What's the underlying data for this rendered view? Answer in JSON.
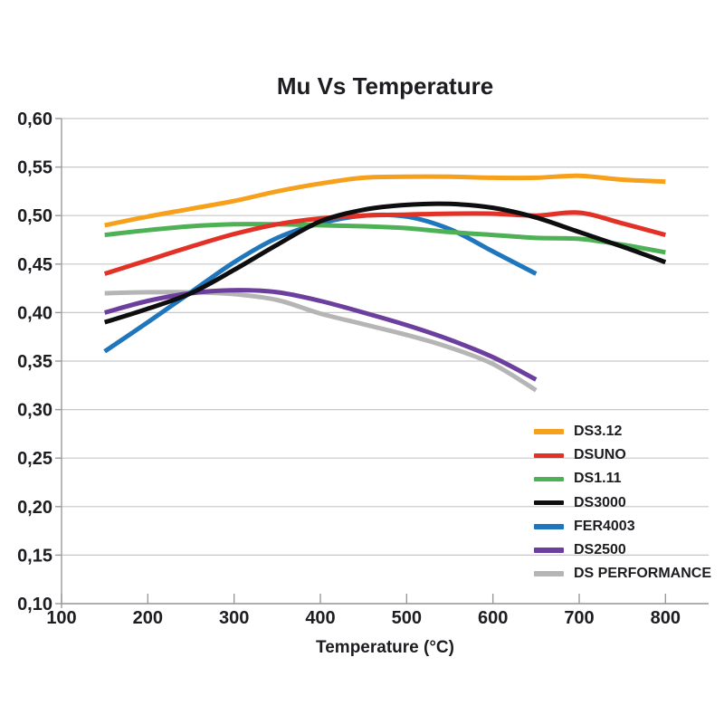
{
  "title": "Mu Vs Temperature",
  "colors": {
    "background": "#ffffff",
    "text": "#1d1d21",
    "grid": "#c7c7c7",
    "axis": "#999999"
  },
  "chart_data": {
    "type": "line",
    "title": "Mu Vs Temperature",
    "xlabel": "Temperature (°C)",
    "ylabel": "",
    "xlim": [
      100,
      850
    ],
    "ylim": [
      0.1,
      0.6
    ],
    "grid": "horizontal",
    "legend_position": "inside-right-bottom",
    "x_ticks": [
      100,
      200,
      300,
      400,
      500,
      600,
      700,
      800
    ],
    "y_ticks": [
      0.1,
      0.15,
      0.2,
      0.25,
      0.3,
      0.35,
      0.4,
      0.45,
      0.5,
      0.55,
      0.6
    ],
    "y_tick_labels": [
      "0,10",
      "0,15",
      "0,20",
      "0,25",
      "0,30",
      "0,35",
      "0,40",
      "0,45",
      "0,50",
      "0,55",
      "0,60"
    ],
    "series": [
      {
        "name": "DS3.12",
        "color": "#f6a01b",
        "x": [
          150,
          200,
          250,
          300,
          350,
          400,
          450,
          500,
          550,
          600,
          650,
          700,
          750,
          800
        ],
        "y": [
          0.49,
          0.499,
          0.507,
          0.515,
          0.525,
          0.533,
          0.539,
          0.54,
          0.54,
          0.539,
          0.539,
          0.541,
          0.537,
          0.535
        ]
      },
      {
        "name": "DSUNO",
        "color": "#e23227",
        "x": [
          150,
          200,
          250,
          300,
          350,
          400,
          450,
          500,
          550,
          600,
          650,
          700,
          750,
          800
        ],
        "y": [
          0.44,
          0.454,
          0.468,
          0.481,
          0.491,
          0.497,
          0.5,
          0.501,
          0.502,
          0.502,
          0.5,
          0.503,
          0.492,
          0.48
        ]
      },
      {
        "name": "DS1.11",
        "color": "#4eb156",
        "x": [
          150,
          200,
          250,
          300,
          350,
          400,
          450,
          500,
          550,
          600,
          650,
          700,
          750,
          800
        ],
        "y": [
          0.48,
          0.485,
          0.489,
          0.491,
          0.491,
          0.49,
          0.489,
          0.487,
          0.483,
          0.48,
          0.477,
          0.476,
          0.47,
          0.462
        ]
      },
      {
        "name": "DS3000",
        "color": "#0e0e10",
        "x": [
          150,
          200,
          250,
          300,
          350,
          400,
          450,
          500,
          550,
          600,
          650,
          700,
          750,
          800
        ],
        "y": [
          0.39,
          0.404,
          0.42,
          0.444,
          0.47,
          0.494,
          0.506,
          0.511,
          0.512,
          0.508,
          0.498,
          0.483,
          0.468,
          0.452
        ]
      },
      {
        "name": "FER4003",
        "color": "#1f76bc",
        "x": [
          150,
          200,
          250,
          300,
          350,
          400,
          450,
          500,
          550,
          600,
          650
        ],
        "y": [
          0.36,
          0.39,
          0.421,
          0.452,
          0.477,
          0.492,
          0.5,
          0.499,
          0.486,
          0.463,
          0.44
        ]
      },
      {
        "name": "DS2500",
        "color": "#6c3f9e",
        "x": [
          150,
          200,
          250,
          300,
          350,
          400,
          450,
          500,
          550,
          600,
          650
        ],
        "y": [
          0.4,
          0.412,
          0.42,
          0.423,
          0.421,
          0.412,
          0.4,
          0.387,
          0.372,
          0.354,
          0.331
        ]
      },
      {
        "name": "DS PERFORMANCE",
        "color": "#b5b5b5",
        "x": [
          150,
          200,
          250,
          300,
          350,
          400,
          450,
          500,
          550,
          600,
          650
        ],
        "y": [
          0.42,
          0.421,
          0.421,
          0.419,
          0.413,
          0.399,
          0.388,
          0.377,
          0.364,
          0.347,
          0.32
        ]
      }
    ],
    "draw_order": [
      6,
      5,
      4,
      2,
      1,
      3,
      0
    ]
  }
}
